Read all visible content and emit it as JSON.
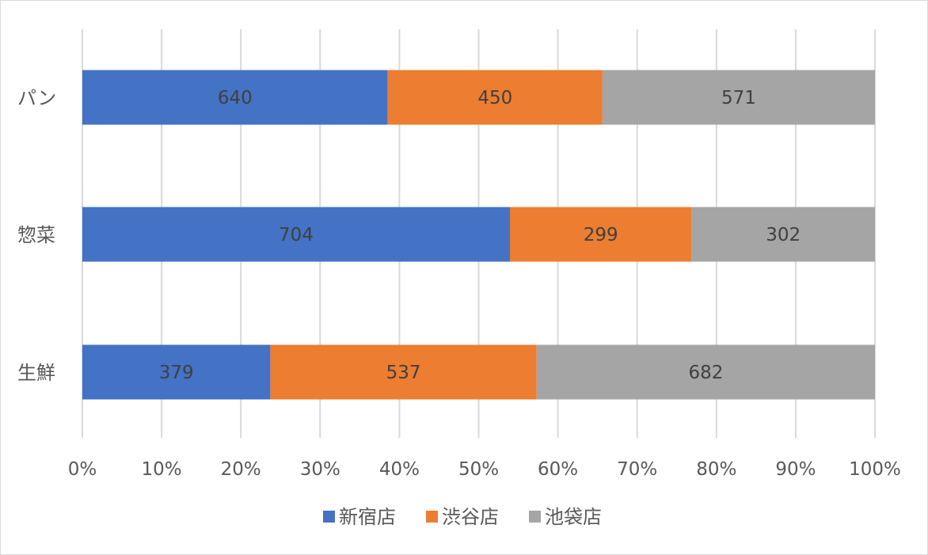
{
  "chart_data": {
    "type": "bar",
    "orientation": "horizontal",
    "stacking": "percent",
    "categories": [
      "パン",
      "惣菜",
      "生鮮"
    ],
    "series": [
      {
        "name": "新宿店",
        "values": [
          640,
          704,
          379
        ],
        "color": "#4472c4"
      },
      {
        "name": "渋谷店",
        "values": [
          450,
          299,
          537
        ],
        "color": "#ed7d31"
      },
      {
        "name": "池袋店",
        "values": [
          571,
          302,
          682
        ],
        "color": "#a5a5a5"
      }
    ],
    "x_ticks": [
      "0%",
      "10%",
      "20%",
      "30%",
      "40%",
      "50%",
      "60%",
      "70%",
      "80%",
      "90%",
      "100%"
    ],
    "xlim": [
      0,
      100
    ],
    "grid": "vertical",
    "legend_position": "bottom",
    "title": "",
    "xlabel": "",
    "ylabel": ""
  }
}
